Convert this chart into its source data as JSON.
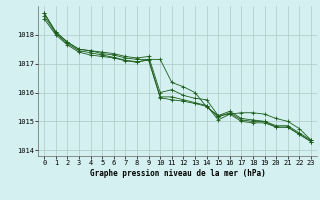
{
  "title": "Graphe pression niveau de la mer (hPa)",
  "background_color": "#d4f0f0",
  "grid_color": "#b0c8c8",
  "line_color": "#1a5c1a",
  "xlim": [
    -0.5,
    23.5
  ],
  "ylim": [
    1013.8,
    1019.0
  ],
  "yticks": [
    1014,
    1015,
    1016,
    1017,
    1018
  ],
  "xticks": [
    0,
    1,
    2,
    3,
    4,
    5,
    6,
    7,
    8,
    9,
    10,
    11,
    12,
    13,
    14,
    15,
    16,
    17,
    18,
    19,
    20,
    21,
    22,
    23
  ],
  "series": [
    [
      1018.75,
      1018.1,
      1017.75,
      1017.5,
      1017.45,
      1017.4,
      1017.35,
      1017.25,
      1017.2,
      1017.25,
      1016.0,
      1016.1,
      1015.9,
      1015.8,
      1015.75,
      1015.2,
      1015.35,
      1015.1,
      1015.05,
      1015.0,
      1014.85,
      1014.85,
      1014.6,
      1014.35
    ],
    [
      1018.75,
      1018.1,
      1017.75,
      1017.5,
      1017.45,
      1017.35,
      1017.3,
      1017.2,
      1017.15,
      1017.15,
      1015.85,
      1015.85,
      1015.75,
      1015.65,
      1015.55,
      1015.05,
      1015.25,
      1015.0,
      1014.95,
      1014.95,
      1014.8,
      1014.8,
      1014.55,
      1014.3
    ],
    [
      1018.65,
      1018.05,
      1017.7,
      1017.45,
      1017.38,
      1017.3,
      1017.22,
      1017.12,
      1017.07,
      1017.12,
      1015.82,
      1015.75,
      1015.7,
      1015.62,
      1015.52,
      1015.15,
      1015.3,
      1015.05,
      1015.0,
      1015.0,
      1014.8,
      1014.8,
      1014.55,
      1014.3
    ],
    [
      1018.55,
      1018.0,
      1017.65,
      1017.4,
      1017.3,
      1017.25,
      1017.2,
      1017.1,
      1017.05,
      1017.15,
      1017.15,
      1016.35,
      1016.2,
      1016.0,
      1015.5,
      1015.2,
      1015.25,
      1015.3,
      1015.3,
      1015.25,
      1015.1,
      1015.0,
      1014.75,
      1014.35
    ]
  ]
}
